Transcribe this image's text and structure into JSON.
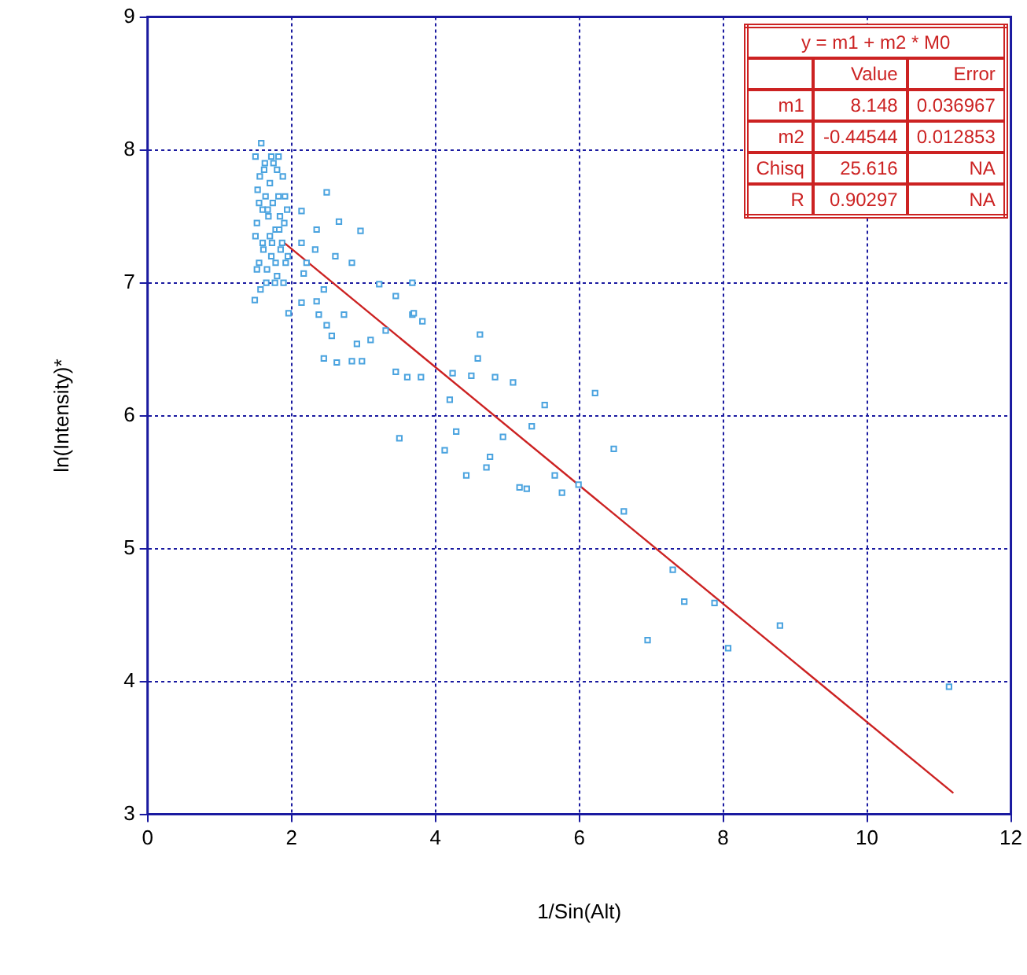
{
  "chart_data": {
    "type": "scatter",
    "xlabel": "1/Sin(Alt)",
    "ylabel": "ln(Intensity)*",
    "xlim": [
      0,
      12
    ],
    "xticks": [
      0,
      2,
      4,
      6,
      8,
      10,
      12
    ],
    "ylim": [
      3,
      9
    ],
    "yticks": [
      3,
      4,
      5,
      6,
      7,
      8,
      9
    ],
    "grid": true,
    "marker": "square",
    "annotations": [
      "y = m1 + m2 * M0",
      "Value",
      "Error",
      "m1",
      "8.148",
      "0.036967",
      "m2",
      "-0.44544",
      "0.012853",
      "Chisq",
      "25.616",
      "NA",
      "R",
      "0.90297",
      "NA"
    ],
    "series": [
      {
        "color": "#4aa3df",
        "x": [
          1.5,
          1.52,
          1.55,
          1.58,
          1.6,
          1.62,
          1.65,
          1.68,
          1.7,
          1.72,
          1.75,
          1.78,
          1.8,
          1.82,
          1.85,
          1.88,
          1.9,
          1.92,
          1.5,
          1.53,
          1.57,
          1.6,
          1.63,
          1.66,
          1.7,
          1.74,
          1.77,
          1.8,
          1.84,
          1.87,
          1.91,
          1.95,
          1.52,
          1.56,
          1.61,
          1.67,
          1.72,
          1.78,
          1.83,
          1.89,
          1.94,
          1.55,
          1.64,
          1.73,
          1.82,
          1.49,
          1.96,
          2.49,
          2.66,
          2.96,
          2.35,
          2.61,
          2.84,
          2.33,
          2.17,
          2.14,
          2.35,
          2.38,
          2.73,
          2.49,
          2.56,
          2.91,
          3.1,
          2.45,
          2.63,
          2.84,
          2.98,
          3.45,
          3.61,
          3.8,
          3.45,
          3.68,
          3.31,
          3.22,
          2.45,
          2.21,
          2.14,
          2.14,
          3.68,
          3.7,
          3.82,
          4.62,
          4.59,
          4.24,
          4.5,
          4.83,
          5.08,
          4.2,
          6.22,
          5.52,
          5.34,
          4.94,
          4.29,
          4.13,
          6.48,
          4.76,
          4.71,
          4.43,
          5.17,
          5.27,
          5.66,
          5.76,
          5.99,
          6.62,
          3.5,
          7.3,
          7.46,
          7.88,
          6.95,
          8.07,
          8.79,
          11.14
        ],
        "values": [
          7.95,
          7.1,
          7.6,
          8.05,
          7.3,
          7.85,
          7.0,
          7.5,
          7.75,
          7.2,
          7.9,
          7.4,
          7.05,
          7.65,
          7.25,
          7.8,
          7.45,
          7.15,
          7.35,
          7.7,
          6.95,
          7.55,
          7.9,
          7.1,
          7.35,
          7.6,
          7.0,
          7.85,
          7.5,
          7.3,
          7.65,
          7.2,
          7.45,
          7.8,
          7.25,
          7.55,
          7.95,
          7.15,
          7.4,
          7.0,
          7.55,
          7.15,
          7.65,
          7.3,
          7.95,
          6.87,
          6.77,
          7.68,
          7.46,
          7.39,
          7.4,
          7.2,
          7.15,
          7.25,
          7.07,
          6.85,
          6.86,
          6.76,
          6.76,
          6.68,
          6.6,
          6.54,
          6.57,
          6.43,
          6.4,
          6.41,
          6.41,
          6.33,
          6.29,
          6.29,
          6.9,
          6.76,
          6.64,
          6.99,
          6.95,
          7.15,
          7.3,
          7.54,
          7.0,
          6.77,
          6.71,
          6.61,
          6.43,
          6.32,
          6.3,
          6.29,
          6.25,
          6.12,
          6.17,
          6.08,
          5.92,
          5.84,
          5.88,
          5.74,
          5.75,
          5.69,
          5.61,
          5.55,
          5.46,
          5.45,
          5.55,
          5.42,
          5.48,
          5.28,
          5.83,
          4.84,
          4.6,
          4.59,
          4.31,
          4.25,
          4.42,
          3.96
        ]
      },
      {
        "type": "line",
        "color": "#cc2222",
        "marker": "none",
        "x": [
          1.9,
          11.2
        ],
        "values": [
          7.3,
          3.16
        ]
      }
    ]
  }
}
